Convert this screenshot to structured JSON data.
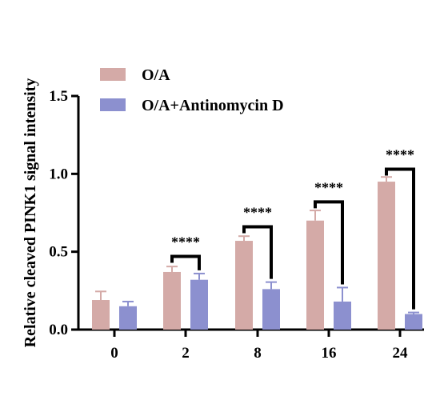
{
  "chart_data": {
    "type": "bar",
    "title": "",
    "xlabel": "",
    "ylabel": "Relative cleaved PINK1 signal intensity",
    "categories": [
      "0",
      "2",
      "8",
      "16",
      "24"
    ],
    "ylim": [
      0,
      1.5
    ],
    "yticks": [
      "0.0",
      "0.5",
      "1.0",
      "1.5"
    ],
    "ytick_values": [
      0,
      0.5,
      1.0,
      1.5
    ],
    "grid": false,
    "legend_position": "top-left",
    "series": [
      {
        "name": "O/A",
        "color": "#d4aaa7",
        "values": [
          0.19,
          0.37,
          0.57,
          0.7,
          0.95
        ],
        "errors": [
          0.055,
          0.035,
          0.03,
          0.065,
          0.03
        ]
      },
      {
        "name": "O/A+Antinomycin D",
        "color": "#8c90cf",
        "values": [
          0.15,
          0.32,
          0.26,
          0.18,
          0.1
        ],
        "errors": [
          0.03,
          0.04,
          0.045,
          0.09,
          0.01
        ]
      }
    ],
    "annotations": [
      {
        "category": "2",
        "text": "****",
        "level": 0.47
      },
      {
        "category": "8",
        "text": "****",
        "level": 0.66
      },
      {
        "category": "16",
        "text": "****",
        "level": 0.82
      },
      {
        "category": "24",
        "text": "****",
        "level": 1.03
      }
    ]
  }
}
